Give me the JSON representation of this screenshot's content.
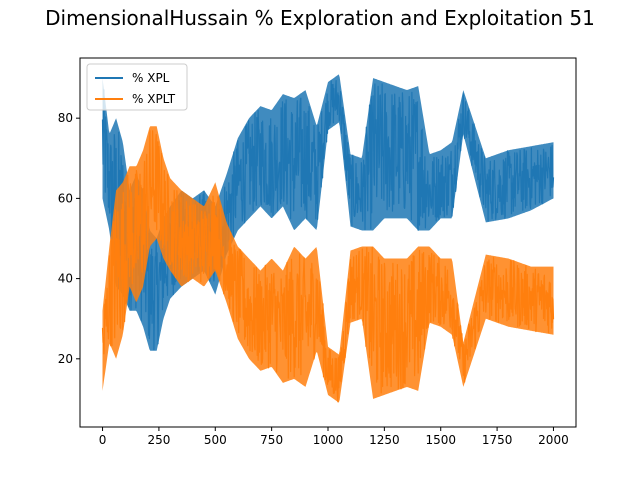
{
  "chart_data": {
    "type": "line",
    "title": "DimensionalHussain % Exploration and Exploitation 51",
    "xlabel": "",
    "ylabel": "",
    "xlim": [
      -100,
      2100
    ],
    "ylim": [
      3,
      95
    ],
    "xticks": [
      0,
      250,
      500,
      750,
      1000,
      1250,
      1500,
      1750,
      2000
    ],
    "yticks": [
      20,
      40,
      60,
      80
    ],
    "grid": false,
    "legend": "top-left",
    "x": [
      0,
      30,
      60,
      90,
      120,
      150,
      180,
      210,
      240,
      270,
      300,
      350,
      400,
      450,
      500,
      550,
      600,
      650,
      700,
      750,
      800,
      850,
      900,
      950,
      1000,
      1050,
      1100,
      1150,
      1200,
      1250,
      1300,
      1350,
      1400,
      1450,
      1500,
      1550,
      1600,
      1700,
      1800,
      1900,
      2000
    ],
    "series": [
      {
        "name": "% XPL",
        "color": "#1f77b4",
        "values": [
          86,
          60,
          62,
          55,
          45,
          42,
          40,
          35,
          30,
          38,
          42,
          48,
          46,
          50,
          42,
          55,
          60,
          65,
          70,
          62,
          72,
          60,
          72,
          58,
          82,
          85,
          60,
          58,
          75,
          68,
          70,
          65,
          72,
          58,
          60,
          62,
          80,
          62,
          62,
          64,
          65
        ],
        "min": [
          60,
          52,
          38,
          36,
          32,
          32,
          28,
          22,
          22,
          30,
          35,
          38,
          40,
          42,
          36,
          46,
          52,
          55,
          58,
          55,
          58,
          52,
          55,
          52,
          77,
          79,
          53,
          52,
          52,
          55,
          55,
          55,
          52,
          52,
          55,
          55,
          76,
          54,
          55,
          57,
          60
        ],
        "max": [
          90,
          76,
          80,
          74,
          62,
          66,
          62,
          52,
          50,
          55,
          58,
          62,
          60,
          62,
          58,
          66,
          75,
          80,
          83,
          82,
          86,
          85,
          87,
          78,
          89,
          91,
          71,
          70,
          90,
          89,
          88,
          87,
          88,
          71,
          72,
          74,
          87,
          70,
          72,
          73,
          74
        ]
      },
      {
        "name": "% XPLT",
        "color": "#ff7f0e",
        "values": [
          14,
          40,
          38,
          45,
          55,
          58,
          60,
          65,
          70,
          62,
          58,
          52,
          54,
          50,
          58,
          45,
          40,
          35,
          30,
          38,
          28,
          40,
          28,
          42,
          18,
          15,
          40,
          42,
          25,
          32,
          30,
          35,
          28,
          42,
          40,
          38,
          20,
          38,
          38,
          36,
          35
        ],
        "min": [
          12,
          24,
          20,
          26,
          38,
          34,
          38,
          48,
          50,
          45,
          42,
          38,
          40,
          38,
          42,
          34,
          25,
          20,
          17,
          18,
          14,
          15,
          13,
          22,
          11,
          9,
          29,
          30,
          10,
          11,
          12,
          13,
          12,
          29,
          28,
          26,
          13,
          30,
          28,
          27,
          26
        ],
        "max": [
          32,
          48,
          62,
          64,
          68,
          68,
          72,
          78,
          78,
          70,
          65,
          62,
          60,
          58,
          64,
          54,
          48,
          45,
          42,
          45,
          42,
          48,
          45,
          48,
          23,
          21,
          47,
          48,
          48,
          45,
          45,
          45,
          48,
          48,
          45,
          45,
          24,
          46,
          45,
          43,
          43
        ]
      }
    ]
  }
}
